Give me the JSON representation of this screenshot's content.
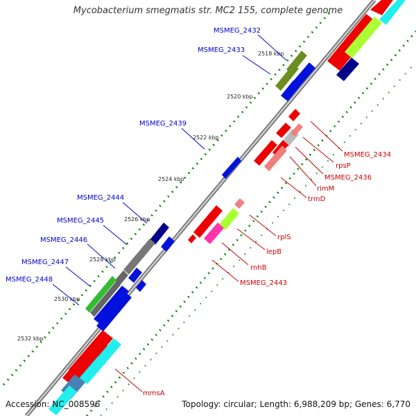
{
  "title": "Mycobacterium smegmatis str. MC2 155, complete genome",
  "accession_text": "Accession: NC_008596",
  "topology_text": "Topology: circular; Length: 6,988,209 bp; Genes: 6,770",
  "tick_labels": [
    "2518 kbp",
    "2520 kbp",
    "2522 kbp",
    "2524 kbp",
    "2526 kbp",
    "2528 kbp",
    "2530 kbp",
    "2532 kbp"
  ],
  "left_gene_labels": [
    "MSMEG_2432",
    "MSMEG_2433",
    "MSMEG_2439",
    "MSMEG_2444",
    "MSMEG_2445",
    "MSMEG_2446",
    "MSMEG_2447",
    "MSMEG_2448"
  ],
  "right_gene_labels": [
    "MSMEG_2434",
    "rpsP",
    "MSMEG_2436",
    "rimM",
    "trmD",
    "rplS",
    "lepB",
    "rnhB",
    "MSMEG_2443",
    "mmsA"
  ],
  "colors": {
    "left_label": "#0000cc",
    "right_label": "#cc0000",
    "red": "#ee0000",
    "blue": "#0011dd",
    "navy": "#000088",
    "olive": "#6b8e23",
    "lime": "#aaff33",
    "cyan": "#22eeee",
    "salmon": "#f08080",
    "pink": "#ff33aa",
    "gray": "#888888",
    "steelblue": "#4682b4",
    "green": "#33bb33",
    "dotted_green": "#118811"
  }
}
